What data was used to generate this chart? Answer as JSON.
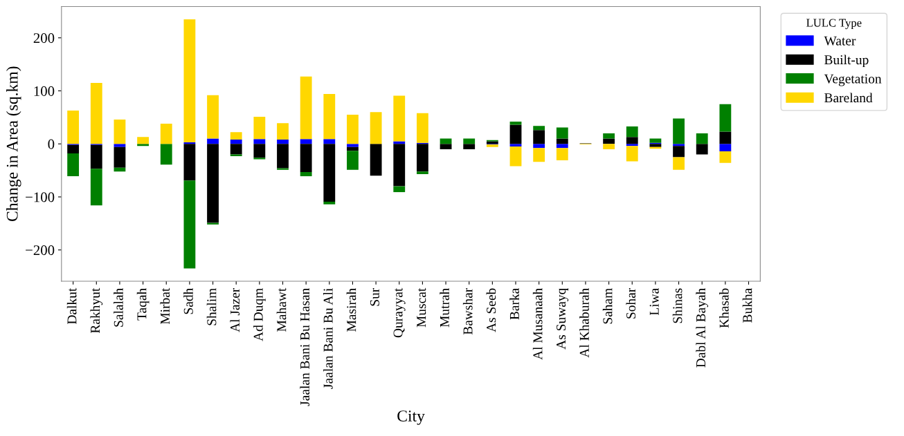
{
  "chart_data": {
    "type": "bar",
    "stacked": true,
    "xlabel": "City",
    "ylabel": "Change in Area (sq.km)",
    "legend_title": "LULC Type",
    "legend": "top right",
    "categories": [
      "Dalkut",
      "Rakhyut",
      "Salalah",
      "Taqah",
      "Mirbat",
      "Sadh",
      "Shalim",
      "Al Jazer",
      "Ad Duqm",
      "Mahawt",
      "Jaalan Bani Bu Hasan",
      "Jaalan Bani Bu Ali",
      "Masirah",
      "Sur",
      "Qurayyat",
      "Muscat",
      "Mutrah",
      "Bawshar",
      "As Seeb",
      "Barka",
      "Al Musanaah",
      "As Suwayq",
      "Al Khaburah",
      "Saham",
      "Sohar",
      "Liwa",
      "Shinas",
      "Dabl Al Bayah",
      "Khasab",
      "Bukha"
    ],
    "series": [
      {
        "name": "Water",
        "color": "#0000ff",
        "values": [
          -2,
          -2,
          -6,
          0,
          0,
          3,
          10,
          8,
          9,
          8,
          9,
          9,
          -6,
          0,
          5,
          2,
          0,
          0,
          -1,
          -5,
          -8,
          -8,
          0,
          0,
          -4,
          2,
          -4,
          0,
          -14,
          0
        ]
      },
      {
        "name": "Built-up",
        "color": "#000000",
        "values": [
          -16,
          -45,
          -39,
          null,
          null,
          -69,
          -149,
          -20,
          -26,
          -46,
          -53,
          -109,
          -7,
          -60,
          -80,
          -52,
          -10,
          -10,
          5,
          36,
          26,
          10,
          1,
          10,
          13,
          -6,
          -21,
          -20,
          23,
          0
        ]
      },
      {
        "name": "Vegetation",
        "color": "#008000",
        "values": [
          -43,
          -69,
          -7,
          -4,
          -39,
          -166,
          -3,
          -3,
          -3,
          -3,
          -8,
          -5,
          -36,
          0,
          -11,
          -5,
          10,
          10,
          2,
          6,
          8,
          21,
          0,
          10,
          20,
          8,
          48,
          20,
          52,
          0
        ]
      },
      {
        "name": "Bareland",
        "color": "#ffd700",
        "values": [
          63,
          115,
          46,
          13,
          38,
          232,
          82,
          14,
          42,
          31,
          118,
          85,
          55,
          60,
          86,
          56,
          0,
          0,
          -5,
          -37,
          -26,
          -23,
          -1,
          -10,
          -29,
          -3,
          -24,
          0,
          -22,
          0
        ]
      }
    ],
    "ylim": [
      -259,
      259
    ],
    "yticks": [
      {
        "value": -200,
        "label": "−200"
      },
      {
        "value": -100,
        "label": "−100"
      },
      0,
      100,
      200
    ]
  }
}
